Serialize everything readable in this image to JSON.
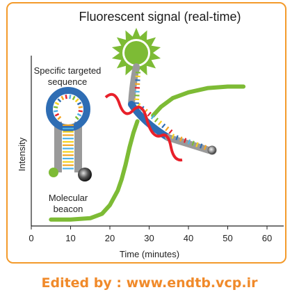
{
  "title": "Fluorescent signal (real-time)",
  "labels": {
    "target": "Specific targeted",
    "target_line2": "sequence",
    "beacon": "Molecular",
    "beacon_line2": "beacon"
  },
  "footer": "Edited by : www.endtb.vcp.ir",
  "colors": {
    "frame": "#f39a2b",
    "curve": "#7dbb35",
    "loop": "#2e6db4",
    "stem": "#9a9a9a",
    "strand_red": "#e8202a",
    "fluorophore": "#7dbb35",
    "footer": "#f08a2a"
  },
  "chart_data": {
    "type": "line",
    "xlabel": "Time (minutes)",
    "ylabel": "Intensity",
    "xlim": [
      0,
      62
    ],
    "x_ticks": [
      "0",
      "10",
      "20",
      "30",
      "40",
      "50",
      "60"
    ],
    "series": [
      {
        "x": [
          5,
          10,
          15,
          18,
          20,
          22,
          23,
          24,
          25,
          26,
          27
        ],
        "y": [
          0.02,
          0.02,
          0.03,
          0.06,
          0.12,
          0.22,
          0.3,
          0.4,
          0.52,
          0.62,
          0.7
        ]
      },
      {
        "x": [
          31,
          33,
          36,
          40,
          45,
          50,
          54
        ],
        "y": [
          0.74,
          0.8,
          0.86,
          0.9,
          0.93,
          0.94,
          0.94
        ]
      }
    ]
  }
}
